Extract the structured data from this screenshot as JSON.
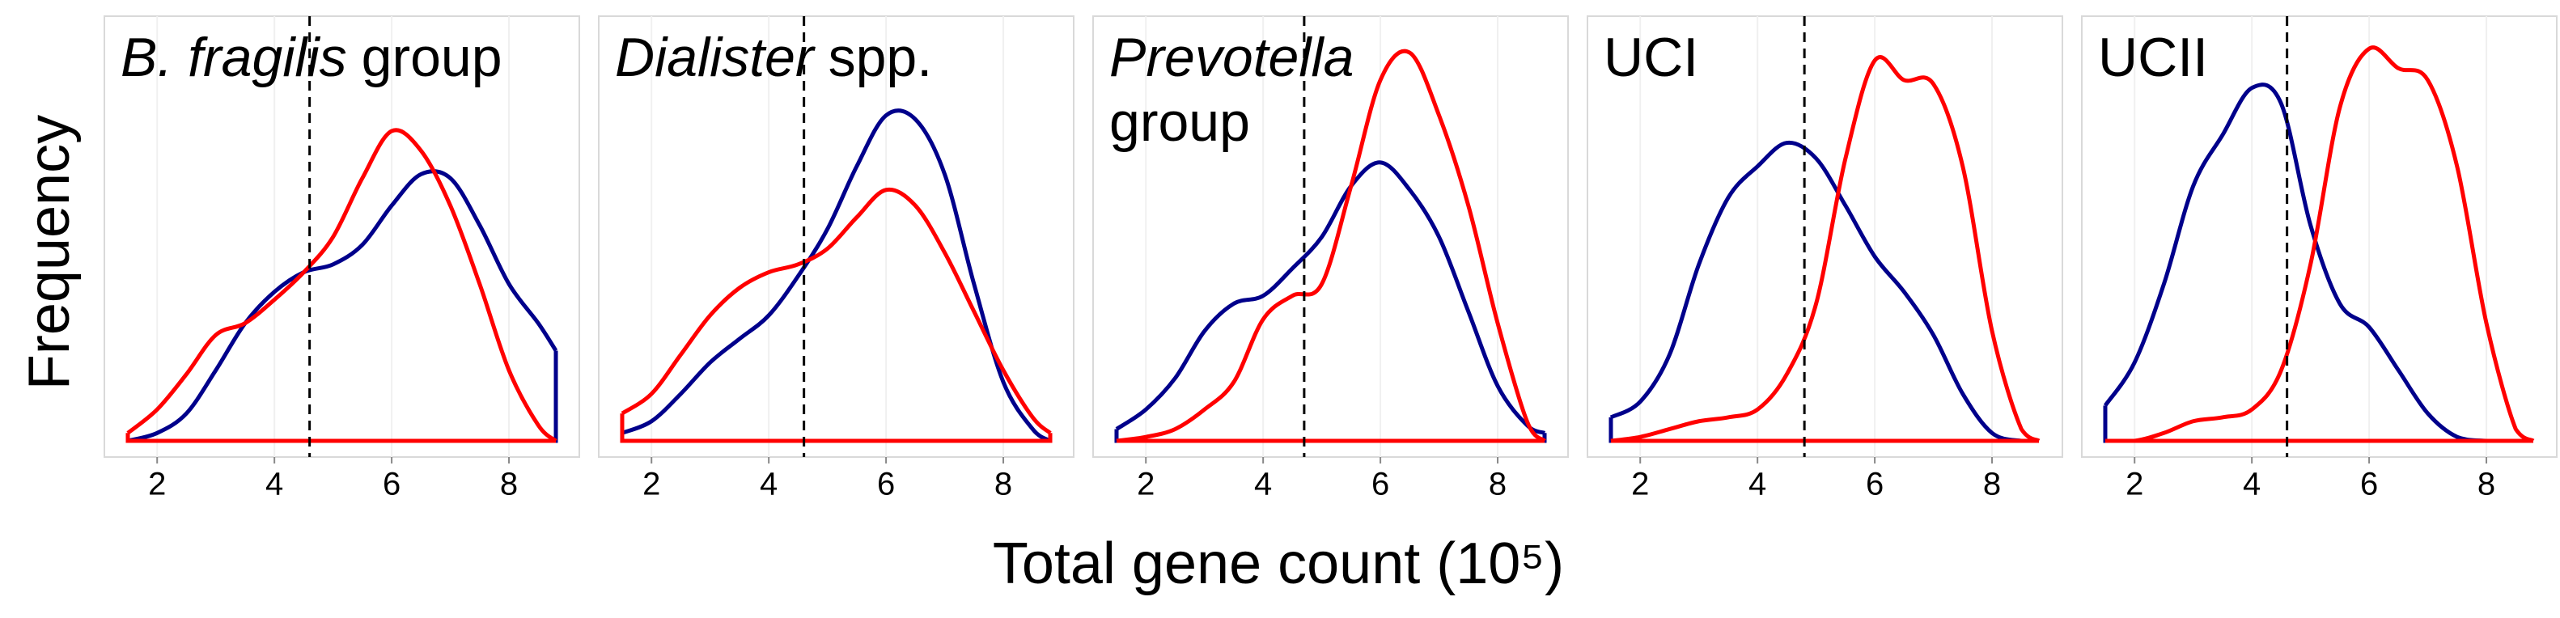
{
  "xlabel": "Total gene count (10⁵)",
  "ylabel": "Frequency",
  "chart_data": [
    {
      "type": "line",
      "title_italic": "B. fragilis",
      "title": "group",
      "title_wrap": false,
      "x": [
        1.5,
        2,
        2.5,
        3,
        3.5,
        4,
        4.5,
        5,
        5.5,
        6,
        6.5,
        7,
        7.5,
        8,
        8.5,
        8.8
      ],
      "series": [
        {
          "color": "#00008b",
          "values": [
            0,
            0.02,
            0.07,
            0.18,
            0.3,
            0.38,
            0.43,
            0.45,
            0.5,
            0.6,
            0.68,
            0.67,
            0.55,
            0.4,
            0.3,
            0.23
          ]
        },
        {
          "color": "#ff0000",
          "values": [
            0.02,
            0.08,
            0.17,
            0.27,
            0.3,
            0.36,
            0.43,
            0.52,
            0.67,
            0.79,
            0.74,
            0.6,
            0.4,
            0.18,
            0.04,
            0
          ]
        }
      ],
      "xlim": [
        1.1,
        9.2
      ],
      "xticks": [
        2,
        4,
        6,
        8
      ],
      "ylim": [
        0,
        1.05
      ],
      "vline": 4.6,
      "grid": true
    },
    {
      "type": "line",
      "title_italic": "Dialister",
      "title": "spp.",
      "title_wrap": false,
      "x": [
        1.5,
        2,
        2.5,
        3,
        3.5,
        4,
        4.5,
        5,
        5.5,
        6,
        6.5,
        7,
        7.5,
        8,
        8.5,
        8.8
      ],
      "series": [
        {
          "color": "#00008b",
          "values": [
            0.02,
            0.05,
            0.12,
            0.2,
            0.26,
            0.32,
            0.42,
            0.54,
            0.7,
            0.83,
            0.82,
            0.68,
            0.4,
            0.15,
            0.03,
            0
          ]
        },
        {
          "color": "#ff0000",
          "values": [
            0.07,
            0.12,
            0.22,
            0.32,
            0.39,
            0.43,
            0.45,
            0.49,
            0.57,
            0.64,
            0.6,
            0.48,
            0.33,
            0.18,
            0.06,
            0.02
          ]
        }
      ],
      "xlim": [
        1.1,
        9.2
      ],
      "xticks": [
        2,
        4,
        6,
        8
      ],
      "ylim": [
        0,
        1.05
      ],
      "vline": 4.6,
      "grid": true
    },
    {
      "type": "line",
      "title_italic": "Prevotella",
      "title": "group",
      "title_wrap": true,
      "x": [
        1.5,
        2,
        2.5,
        3,
        3.5,
        4,
        4.5,
        5,
        5.5,
        6,
        6.5,
        7,
        7.5,
        8,
        8.5,
        8.8
      ],
      "series": [
        {
          "color": "#00008b",
          "values": [
            0.03,
            0.08,
            0.16,
            0.28,
            0.35,
            0.37,
            0.44,
            0.52,
            0.65,
            0.71,
            0.64,
            0.52,
            0.33,
            0.14,
            0.04,
            0.02
          ]
        },
        {
          "color": "#ff0000",
          "values": [
            0,
            0.01,
            0.03,
            0.08,
            0.15,
            0.31,
            0.37,
            0.4,
            0.65,
            0.92,
            0.99,
            0.83,
            0.6,
            0.3,
            0.05,
            0
          ]
        }
      ],
      "xlim": [
        1.1,
        9.2
      ],
      "xticks": [
        2,
        4,
        6,
        8
      ],
      "ylim": [
        0,
        1.05
      ],
      "vline": 4.7,
      "grid": true
    },
    {
      "type": "line",
      "title": "UCI",
      "title_wrap": false,
      "x": [
        1.5,
        2,
        2.5,
        3,
        3.5,
        4,
        4.5,
        5,
        5.5,
        6,
        6.5,
        7,
        7.5,
        8,
        8.5,
        8.8
      ],
      "series": [
        {
          "color": "#00008b",
          "values": [
            0.06,
            0.1,
            0.22,
            0.45,
            0.62,
            0.7,
            0.76,
            0.72,
            0.6,
            0.47,
            0.38,
            0.27,
            0.12,
            0.02,
            0,
            0
          ]
        },
        {
          "color": "#ff0000",
          "values": [
            0,
            0.01,
            0.03,
            0.05,
            0.06,
            0.08,
            0.17,
            0.35,
            0.72,
            0.97,
            0.92,
            0.91,
            0.7,
            0.28,
            0.03,
            0
          ]
        }
      ],
      "xlim": [
        1.1,
        9.2
      ],
      "xticks": [
        2,
        4,
        6,
        8
      ],
      "ylim": [
        0,
        1.05
      ],
      "vline": 4.8,
      "grid": true
    },
    {
      "type": "line",
      "title": "UCII",
      "title_wrap": false,
      "x": [
        1.5,
        2,
        2.5,
        3,
        3.5,
        4,
        4.5,
        5,
        5.5,
        6,
        6.5,
        7,
        7.5,
        8,
        8.5,
        8.8
      ],
      "series": [
        {
          "color": "#00008b",
          "values": [
            0.09,
            0.2,
            0.4,
            0.65,
            0.78,
            0.9,
            0.86,
            0.55,
            0.35,
            0.29,
            0.18,
            0.07,
            0.01,
            0,
            0,
            0
          ]
        },
        {
          "color": "#ff0000",
          "values": [
            0,
            0,
            0.02,
            0.05,
            0.06,
            0.08,
            0.18,
            0.45,
            0.85,
            1,
            0.95,
            0.92,
            0.7,
            0.3,
            0.03,
            0
          ]
        }
      ],
      "xlim": [
        1.1,
        9.2
      ],
      "xticks": [
        2,
        4,
        6,
        8
      ],
      "ylim": [
        0,
        1.05
      ],
      "vline": 4.6,
      "grid": true
    }
  ]
}
